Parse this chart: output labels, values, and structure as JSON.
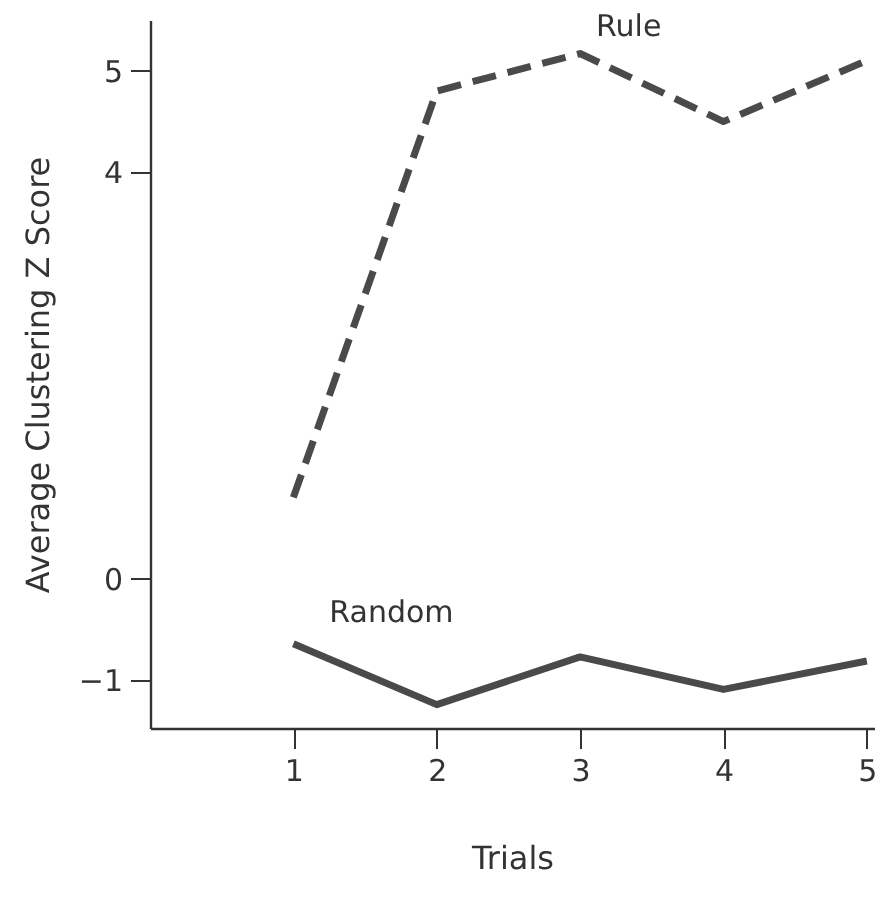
{
  "chart_data": {
    "type": "line",
    "xlabel": "Trials",
    "ylabel": "Average Clustering Z Score",
    "x": [
      1,
      2,
      3,
      4,
      5
    ],
    "xlim": [
      0,
      5.05
    ],
    "xticks": [
      1,
      2,
      3,
      4,
      5
    ],
    "ylim": [
      -1.47,
      5.5
    ],
    "yticks": [
      -1,
      0,
      4,
      5
    ],
    "grid": false,
    "marker": "none",
    "series": [
      {
        "name": "Rule",
        "color": "#4a4a4a",
        "line_style": "dashed",
        "values": [
          0.8,
          4.8,
          5.17,
          4.5,
          5.1
        ]
      },
      {
        "name": "Random",
        "color": "#4a4a4a",
        "line_style": "solid",
        "values": [
          -0.64,
          -1.24,
          -0.77,
          -1.09,
          -0.81
        ]
      }
    ]
  }
}
